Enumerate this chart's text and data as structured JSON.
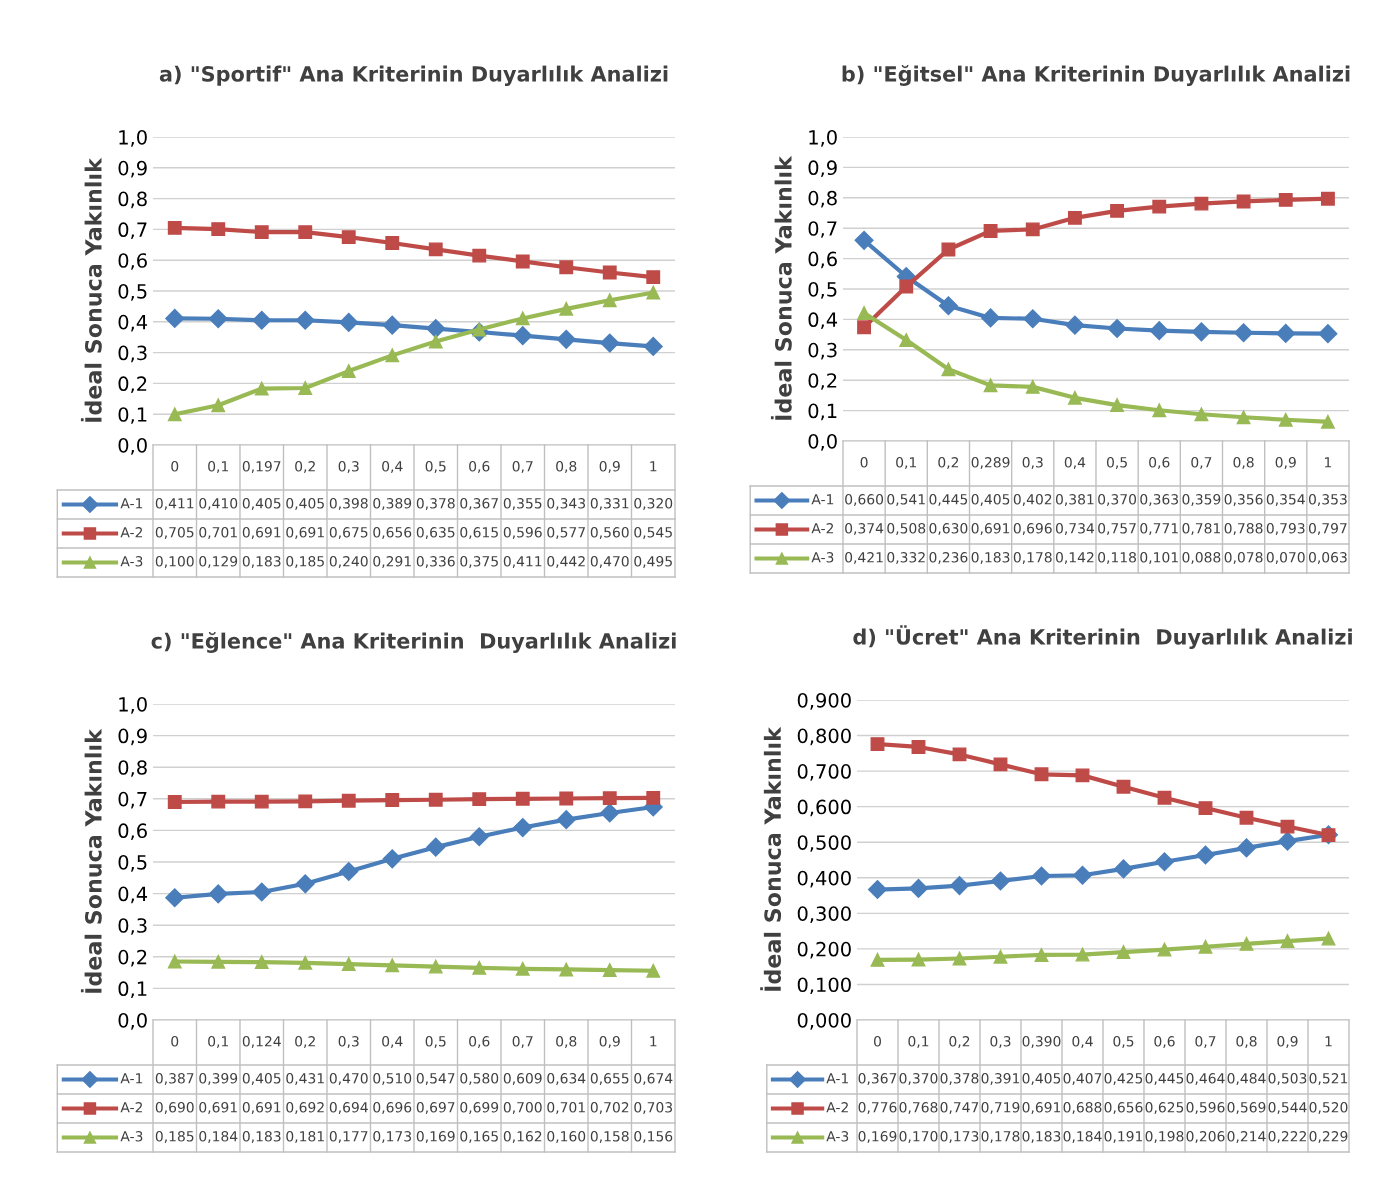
{
  "chart_data": [
    {
      "type": "line",
      "title": "a) \"Sportif\" Ana Kriterinin Duyarlılık Analizi",
      "ylabel": "İdeal Sonuca Yakınlık",
      "categories": [
        "0",
        "0,1",
        "0,197",
        "0,2",
        "0,3",
        "0,4",
        "0,5",
        "0,6",
        "0,7",
        "0,8",
        "0,9",
        "1"
      ],
      "ylim": [
        0,
        1
      ],
      "yticks": [
        {
          "value": 0,
          "label": "0,0"
        },
        {
          "value": 0.1,
          "label": "0,1"
        },
        {
          "value": 0.2,
          "label": "0,2"
        },
        {
          "value": 0.3,
          "label": "0,3"
        },
        {
          "value": 0.4,
          "label": "0,4"
        },
        {
          "value": 0.5,
          "label": "0,5"
        },
        {
          "value": 0.6,
          "label": "0,6"
        },
        {
          "value": 0.7,
          "label": "0,7"
        },
        {
          "value": 0.8,
          "label": "0,8"
        },
        {
          "value": 0.9,
          "label": "0,9"
        },
        {
          "value": 1,
          "label": "1,0"
        }
      ],
      "grid": "y",
      "legend": "bottom",
      "series": [
        {
          "name": "A-1",
          "color": "#4a7ebb",
          "marker": "diamond",
          "values": [
            0.411,
            0.41,
            0.405,
            0.405,
            0.398,
            0.389,
            0.378,
            0.367,
            0.355,
            0.343,
            0.331,
            0.32
          ],
          "value_labels": [
            "0,411",
            "0,410",
            "0,405",
            "0,405",
            "0,398",
            "0,389",
            "0,378",
            "0,367",
            "0,355",
            "0,343",
            "0,331",
            "0,320"
          ]
        },
        {
          "name": "A-2",
          "color": "#be4b48",
          "marker": "square",
          "values": [
            0.705,
            0.701,
            0.691,
            0.691,
            0.675,
            0.656,
            0.635,
            0.615,
            0.596,
            0.577,
            0.56,
            0.545
          ],
          "value_labels": [
            "0,705",
            "0,701",
            "0,691",
            "0,691",
            "0,675",
            "0,656",
            "0,635",
            "0,615",
            "0,596",
            "0,577",
            "0,560",
            "0,545"
          ]
        },
        {
          "name": "A-3",
          "color": "#98b954",
          "marker": "triangle",
          "values": [
            0.1,
            0.129,
            0.183,
            0.185,
            0.24,
            0.291,
            0.336,
            0.375,
            0.411,
            0.442,
            0.47,
            0.495
          ],
          "value_labels": [
            "0,100",
            "0,129",
            "0,183",
            "0,185",
            "0,240",
            "0,291",
            "0,336",
            "0,375",
            "0,411",
            "0,442",
            "0,470",
            "0,495"
          ]
        }
      ]
    },
    {
      "type": "line",
      "title": "b) \"Eğitsel\" Ana Kriterinin Duyarlılık Analizi",
      "ylabel": "İdeal Sonuca Yakınlık",
      "categories": [
        "0",
        "0,1",
        "0,2",
        "0,289",
        "0,3",
        "0,4",
        "0,5",
        "0,6",
        "0,7",
        "0,8",
        "0,9",
        "1"
      ],
      "ylim": [
        0,
        1
      ],
      "yticks": [
        {
          "value": 0,
          "label": "0,0"
        },
        {
          "value": 0.1,
          "label": "0,1"
        },
        {
          "value": 0.2,
          "label": "0,2"
        },
        {
          "value": 0.3,
          "label": "0,3"
        },
        {
          "value": 0.4,
          "label": "0,4"
        },
        {
          "value": 0.5,
          "label": "0,5"
        },
        {
          "value": 0.6,
          "label": "0,6"
        },
        {
          "value": 0.7,
          "label": "0,7"
        },
        {
          "value": 0.8,
          "label": "0,8"
        },
        {
          "value": 0.9,
          "label": "0,9"
        },
        {
          "value": 1,
          "label": "1,0"
        }
      ],
      "grid": "y",
      "legend": "bottom",
      "series": [
        {
          "name": "A-1",
          "color": "#4a7ebb",
          "marker": "diamond",
          "values": [
            0.66,
            0.541,
            0.445,
            0.405,
            0.402,
            0.381,
            0.37,
            0.363,
            0.359,
            0.356,
            0.354,
            0.353
          ],
          "value_labels": [
            "0,660",
            "0,541",
            "0,445",
            "0,405",
            "0,402",
            "0,381",
            "0,370",
            "0,363",
            "0,359",
            "0,356",
            "0,354",
            "0,353"
          ]
        },
        {
          "name": "A-2",
          "color": "#be4b48",
          "marker": "square",
          "values": [
            0.374,
            0.508,
            0.63,
            0.691,
            0.696,
            0.734,
            0.757,
            0.771,
            0.781,
            0.788,
            0.793,
            0.797
          ],
          "value_labels": [
            "0,374",
            "0,508",
            "0,630",
            "0,691",
            "0,696",
            "0,734",
            "0,757",
            "0,771",
            "0,781",
            "0,788",
            "0,793",
            "0,797"
          ]
        },
        {
          "name": "A-3",
          "color": "#98b954",
          "marker": "triangle",
          "values": [
            0.421,
            0.332,
            0.236,
            0.183,
            0.178,
            0.142,
            0.118,
            0.101,
            0.088,
            0.078,
            0.07,
            0.063
          ],
          "value_labels": [
            "0,421",
            "0,332",
            "0,236",
            "0,183",
            "0,178",
            "0,142",
            "0,118",
            "0,101",
            "0,088",
            "0,078",
            "0,070",
            "0,063"
          ]
        }
      ]
    },
    {
      "type": "line",
      "title": "c) \"Eğlence\" Ana Kriterinin  Duyarlılık Analizi",
      "ylabel": "İdeal Sonuca Yakınlık",
      "categories": [
        "0",
        "0,1",
        "0,124",
        "0,2",
        "0,3",
        "0,4",
        "0,5",
        "0,6",
        "0,7",
        "0,8",
        "0,9",
        "1"
      ],
      "ylim": [
        0,
        1
      ],
      "yticks": [
        {
          "value": 0,
          "label": "0,0"
        },
        {
          "value": 0.1,
          "label": "0,1"
        },
        {
          "value": 0.2,
          "label": "0,2"
        },
        {
          "value": 0.3,
          "label": "0,3"
        },
        {
          "value": 0.4,
          "label": "0,4"
        },
        {
          "value": 0.5,
          "label": "0,5"
        },
        {
          "value": 0.6,
          "label": "0,6"
        },
        {
          "value": 0.7,
          "label": "0,7"
        },
        {
          "value": 0.8,
          "label": "0,8"
        },
        {
          "value": 0.9,
          "label": "0,9"
        },
        {
          "value": 1,
          "label": "1,0"
        }
      ],
      "grid": "y",
      "legend": "bottom",
      "series": [
        {
          "name": "A-1",
          "color": "#4a7ebb",
          "marker": "diamond",
          "values": [
            0.387,
            0.399,
            0.405,
            0.431,
            0.47,
            0.51,
            0.547,
            0.58,
            0.609,
            0.634,
            0.655,
            0.674
          ],
          "value_labels": [
            "0,387",
            "0,399",
            "0,405",
            "0,431",
            "0,470",
            "0,510",
            "0,547",
            "0,580",
            "0,609",
            "0,634",
            "0,655",
            "0,674"
          ]
        },
        {
          "name": "A-2",
          "color": "#be4b48",
          "marker": "square",
          "values": [
            0.69,
            0.691,
            0.691,
            0.692,
            0.694,
            0.696,
            0.697,
            0.699,
            0.7,
            0.701,
            0.702,
            0.703
          ],
          "value_labels": [
            "0,690",
            "0,691",
            "0,691",
            "0,692",
            "0,694",
            "0,696",
            "0,697",
            "0,699",
            "0,700",
            "0,701",
            "0,702",
            "0,703"
          ]
        },
        {
          "name": "A-3",
          "color": "#98b954",
          "marker": "triangle",
          "values": [
            0.185,
            0.184,
            0.183,
            0.181,
            0.177,
            0.173,
            0.169,
            0.165,
            0.162,
            0.16,
            0.158,
            0.156
          ],
          "value_labels": [
            "0,185",
            "0,184",
            "0,183",
            "0,181",
            "0,177",
            "0,173",
            "0,169",
            "0,165",
            "0,162",
            "0,160",
            "0,158",
            "0,156"
          ]
        }
      ]
    },
    {
      "type": "line",
      "title": "d) \"Ücret\" Ana Kriterinin  Duyarlılık Analizi",
      "ylabel": "İdeal Sonuca Yakınlık",
      "categories": [
        "0",
        "0,1",
        "0,2",
        "0,3",
        "0,390",
        "0,4",
        "0,5",
        "0,6",
        "0,7",
        "0,8",
        "0,9",
        "1"
      ],
      "ylim": [
        0,
        0.9
      ],
      "yticks": [
        {
          "value": 0,
          "label": "0,000"
        },
        {
          "value": 0.1,
          "label": "0,100"
        },
        {
          "value": 0.2,
          "label": "0,200"
        },
        {
          "value": 0.3,
          "label": "0,300"
        },
        {
          "value": 0.4,
          "label": "0,400"
        },
        {
          "value": 0.5,
          "label": "0,500"
        },
        {
          "value": 0.6,
          "label": "0,600"
        },
        {
          "value": 0.7,
          "label": "0,700"
        },
        {
          "value": 0.8,
          "label": "0,800"
        },
        {
          "value": 0.9,
          "label": "0,900"
        }
      ],
      "grid": "y",
      "legend": "bottom",
      "series": [
        {
          "name": "A-1",
          "color": "#4a7ebb",
          "marker": "diamond",
          "values": [
            0.367,
            0.37,
            0.378,
            0.391,
            0.405,
            0.407,
            0.425,
            0.445,
            0.464,
            0.484,
            0.503,
            0.521
          ],
          "value_labels": [
            "0,367",
            "0,370",
            "0,378",
            "0,391",
            "0,405",
            "0,407",
            "0,425",
            "0,445",
            "0,464",
            "0,484",
            "0,503",
            "0,521"
          ]
        },
        {
          "name": "A-2",
          "color": "#be4b48",
          "marker": "square",
          "values": [
            0.776,
            0.768,
            0.747,
            0.719,
            0.691,
            0.688,
            0.656,
            0.625,
            0.596,
            0.569,
            0.544,
            0.52
          ],
          "value_labels": [
            "0,776",
            "0,768",
            "0,747",
            "0,719",
            "0,691",
            "0,688",
            "0,656",
            "0,625",
            "0,596",
            "0,569",
            "0,544",
            "0,520"
          ]
        },
        {
          "name": "A-3",
          "color": "#98b954",
          "marker": "triangle",
          "values": [
            0.169,
            0.17,
            0.173,
            0.178,
            0.183,
            0.184,
            0.191,
            0.198,
            0.206,
            0.214,
            0.222,
            0.229
          ],
          "value_labels": [
            "0,169",
            "0,170",
            "0,173",
            "0,178",
            "0,183",
            "0,184",
            "0,191",
            "0,198",
            "0,206",
            "0,214",
            "0,222",
            "0,229"
          ]
        }
      ]
    }
  ]
}
